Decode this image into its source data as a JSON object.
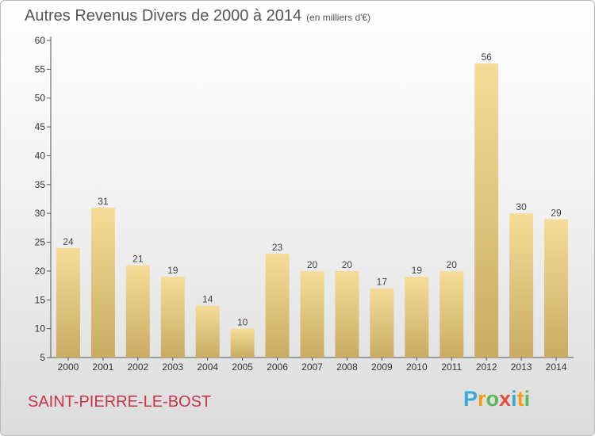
{
  "title": {
    "main": "Autres Revenus Divers de 2000 à 2014",
    "unit": "(en milliers d'€)"
  },
  "commune": "SAINT-PIERRE-LE-BOST",
  "logo": {
    "letters": [
      "P",
      "r",
      "o",
      "x",
      "i",
      "t",
      "i"
    ],
    "colors": [
      "#3aa6d9",
      "#f39c12",
      "#5cb85c",
      "#e74c3c",
      "#3aa6d9",
      "#f39c12",
      "#5cb85c"
    ]
  },
  "chart_data": {
    "type": "bar",
    "categories": [
      "2000",
      "2001",
      "2002",
      "2003",
      "2004",
      "2005",
      "2006",
      "2007",
      "2008",
      "2009",
      "2010",
      "2011",
      "2012",
      "2013",
      "2014"
    ],
    "values": [
      24,
      31,
      21,
      19,
      14,
      10,
      23,
      20,
      20,
      17,
      19,
      20,
      56,
      30,
      29
    ],
    "title": "Autres Revenus Divers de 2000 à 2014",
    "ylim": [
      5,
      60
    ],
    "yticks": [
      5,
      10,
      15,
      20,
      25,
      30,
      35,
      40,
      45,
      50,
      55,
      60
    ],
    "grid": false,
    "bar_color_top": "#f5dc98",
    "bar_color_bottom": "#c9ac62",
    "label_color": "#444444"
  }
}
